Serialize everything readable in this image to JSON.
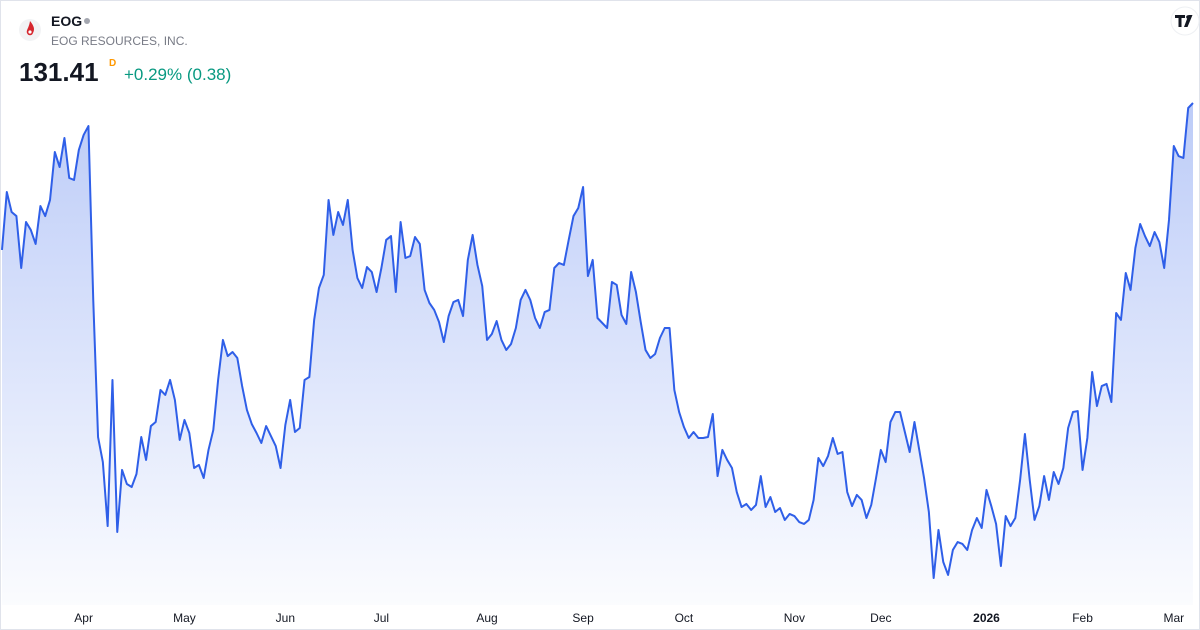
{
  "header": {
    "symbol": "EOG",
    "name": "EOG RESOURCES, INC.",
    "price": 131.41,
    "interval": "D",
    "change": "+0.29% (0.38)"
  },
  "chart_data": {
    "type": "area",
    "color": "#2f5fe8",
    "categories": [
      null,
      null,
      null,
      null,
      null,
      null,
      null,
      null,
      null,
      null,
      null,
      null,
      null,
      null,
      null,
      null,
      null,
      "Apr",
      null,
      null,
      null,
      null,
      null,
      null,
      null,
      null,
      null,
      null,
      null,
      null,
      null,
      null,
      null,
      null,
      null,
      null,
      null,
      null,
      "May",
      null,
      null,
      null,
      null,
      null,
      null,
      null,
      null,
      null,
      null,
      null,
      null,
      null,
      null,
      null,
      null,
      null,
      null,
      null,
      null,
      "Jun",
      null,
      null,
      null,
      null,
      null,
      null,
      null,
      null,
      null,
      null,
      null,
      null,
      null,
      null,
      null,
      null,
      null,
      null,
      null,
      "Jul",
      null,
      null,
      null,
      null,
      null,
      null,
      null,
      null,
      null,
      null,
      null,
      null,
      null,
      null,
      null,
      null,
      null,
      null,
      null,
      null,
      null,
      "Aug",
      null,
      null,
      null,
      null,
      null,
      null,
      null,
      null,
      null,
      null,
      null,
      null,
      null,
      null,
      null,
      null,
      null,
      null,
      null,
      "Sep",
      null,
      null,
      null,
      null,
      null,
      null,
      null,
      null,
      null,
      null,
      null,
      null,
      null,
      null,
      null,
      null,
      null,
      null,
      null,
      null,
      "Oct",
      null,
      null,
      null,
      null,
      null,
      null,
      null,
      null,
      null,
      null,
      null,
      null,
      null,
      null,
      null,
      null,
      null,
      null,
      null,
      null,
      null,
      null,
      "Nov",
      null,
      null,
      null,
      null,
      null,
      null,
      null,
      null,
      null,
      null,
      null,
      null,
      null,
      null,
      null,
      null,
      null,
      "Dec",
      null,
      null,
      null,
      null,
      null,
      null,
      null,
      null,
      null,
      null,
      null,
      null,
      null,
      null,
      null,
      null,
      null,
      null,
      null,
      null,
      null,
      "2026",
      null,
      null,
      null,
      null,
      null,
      null,
      null,
      null,
      null,
      null,
      null,
      null,
      null,
      null,
      null,
      null,
      null,
      null,
      null,
      "Feb",
      null,
      null,
      null,
      null,
      null,
      null,
      null,
      null,
      null,
      null,
      null,
      null,
      null,
      null,
      null,
      null,
      null,
      null,
      "Mar",
      null,
      null,
      null,
      null
    ],
    "values": [
      122.3,
      125.89,
      124.65,
      124.4,
      121.18,
      124.03,
      123.54,
      122.67,
      125.02,
      124.4,
      125.4,
      128.37,
      127.44,
      129.24,
      126.76,
      126.64,
      128.5,
      129.43,
      129.98,
      119.2,
      110.7,
      109.15,
      105.18,
      114.24,
      104.81,
      108.66,
      107.79,
      107.6,
      108.41,
      110.7,
      109.28,
      111.38,
      111.63,
      113.62,
      113.31,
      114.24,
      113.0,
      110.52,
      111.76,
      110.95,
      108.78,
      108.97,
      108.16,
      109.9,
      111.14,
      114.24,
      116.72,
      115.72,
      115.97,
      115.6,
      113.86,
      112.38,
      111.51,
      110.95,
      110.33,
      111.38,
      110.76,
      110.14,
      108.78,
      111.45,
      113.0,
      111.01,
      111.26,
      114.24,
      114.42,
      117.96,
      119.94,
      120.75,
      125.4,
      123.23,
      124.65,
      123.85,
      125.4,
      122.3,
      120.56,
      119.94,
      121.24,
      120.93,
      119.69,
      121.18,
      122.92,
      123.16,
      119.69,
      124.03,
      121.8,
      121.92,
      123.1,
      122.67,
      119.82,
      119.01,
      118.58,
      117.83,
      116.59,
      118.2,
      119.07,
      119.2,
      118.2,
      121.68,
      123.23,
      121.37,
      120.06,
      116.72,
      117.09,
      117.89,
      116.72,
      116.1,
      116.47,
      117.46,
      119.2,
      119.82,
      119.2,
      118.08,
      117.46,
      118.45,
      118.58,
      121.18,
      121.49,
      121.37,
      122.92,
      124.4,
      124.9,
      126.2,
      120.68,
      121.68,
      118.08,
      117.77,
      117.46,
      120.31,
      120.13,
      118.27,
      117.71,
      120.93,
      119.69,
      117.83,
      116.1,
      115.6,
      115.85,
      116.84,
      117.46,
      117.46,
      113.62,
      112.25,
      111.32,
      110.64,
      111.01,
      110.64,
      110.64,
      110.7,
      112.13,
      108.28,
      109.9,
      109.28,
      108.78,
      107.29,
      106.36,
      106.55,
      106.18,
      106.49,
      108.28,
      106.36,
      106.98,
      106.05,
      106.3,
      105.56,
      105.93,
      105.8,
      105.43,
      105.31,
      105.56,
      106.8,
      109.4,
      108.9,
      109.52,
      110.64,
      109.65,
      109.77,
      107.29,
      106.42,
      107.11,
      106.8,
      105.68,
      106.49,
      108.16,
      109.9,
      109.15,
      111.63,
      112.25,
      112.25,
      111.01,
      109.77,
      111.63,
      109.9,
      108.16,
      106.05,
      101.96,
      104.94,
      102.95,
      102.15,
      103.7,
      104.19,
      104.07,
      103.7,
      104.94,
      105.68,
      105.06,
      107.42,
      106.42,
      105.31,
      102.7,
      105.8,
      105.18,
      105.68,
      108.04,
      110.89,
      108.04,
      105.56,
      106.42,
      108.28,
      106.8,
      108.53,
      107.79,
      108.78,
      111.26,
      112.25,
      112.31,
      108.66,
      110.64,
      114.73,
      112.62,
      113.86,
      113.99,
      112.87,
      118.39,
      117.96,
      120.87,
      119.82,
      122.42,
      123.91,
      123.16,
      122.54,
      123.41,
      122.79,
      121.18,
      124.16,
      128.74,
      128.12,
      128.0,
      131.1,
      131.41
    ]
  }
}
